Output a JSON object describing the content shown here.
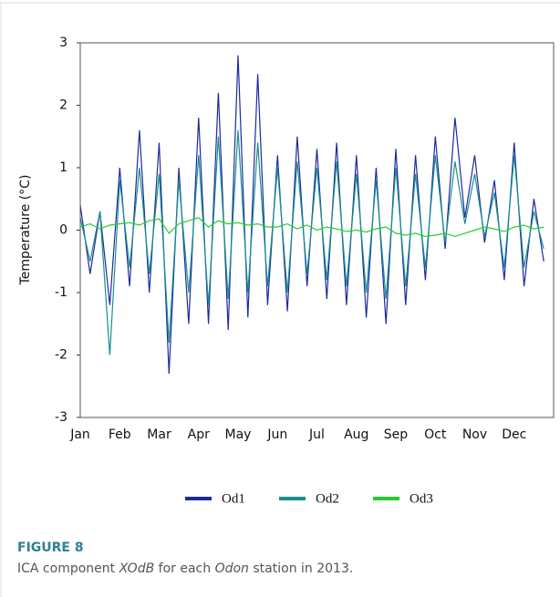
{
  "chart_data": {
    "type": "line",
    "y_label": "Temperature (°C)",
    "categories": [
      "Jan",
      null,
      null,
      null,
      "Feb",
      null,
      null,
      null,
      "Mar",
      null,
      null,
      null,
      "Apr",
      null,
      null,
      null,
      "May",
      null,
      null,
      null,
      "Jun",
      null,
      null,
      null,
      "Jul",
      null,
      null,
      null,
      "Aug",
      null,
      null,
      null,
      "Sep",
      null,
      null,
      null,
      "Oct",
      null,
      null,
      null,
      "Nov",
      null,
      null,
      null,
      "Dec",
      null,
      null,
      null
    ],
    "series": [
      {
        "name": "Od1",
        "color": "#1e2a9e",
        "values": [
          0.4,
          -0.7,
          0.3,
          -1.2,
          1.0,
          -0.9,
          1.6,
          -1.0,
          1.4,
          -2.3,
          1.0,
          -1.5,
          1.8,
          -1.5,
          2.2,
          -1.6,
          2.8,
          -1.4,
          2.5,
          -1.2,
          1.2,
          -1.3,
          1.5,
          -0.9,
          1.3,
          -1.1,
          1.4,
          -1.2,
          1.2,
          -1.4,
          1.0,
          -1.5,
          1.3,
          -1.2,
          1.2,
          -0.8,
          1.5,
          -0.3,
          1.8,
          0.2,
          1.2,
          -0.2,
          0.8,
          -0.8,
          1.4,
          -0.9,
          0.5,
          -0.5
        ]
      },
      {
        "name": "Od2",
        "color": "#17908f",
        "values": [
          0.2,
          -0.5,
          0.3,
          -2.0,
          0.8,
          -0.6,
          1.0,
          -0.7,
          0.9,
          -1.8,
          0.8,
          -1.0,
          1.2,
          -1.2,
          1.5,
          -1.1,
          1.6,
          -1.0,
          1.4,
          -0.9,
          1.0,
          -1.0,
          1.1,
          -0.7,
          1.0,
          -0.8,
          1.1,
          -0.9,
          0.9,
          -1.0,
          0.8,
          -1.1,
          1.0,
          -0.9,
          0.9,
          -0.6,
          1.2,
          -0.2,
          1.1,
          0.1,
          0.9,
          -0.1,
          0.6,
          -0.6,
          1.2,
          -0.6,
          0.3,
          -0.3
        ]
      },
      {
        "name": "Od3",
        "color": "#22d02a",
        "values": [
          0.05,
          0.1,
          0.02,
          0.08,
          0.1,
          0.12,
          0.08,
          0.15,
          0.18,
          -0.05,
          0.1,
          0.15,
          0.2,
          0.05,
          0.15,
          0.1,
          0.12,
          0.08,
          0.1,
          0.05,
          0.05,
          0.1,
          0.02,
          0.08,
          0.0,
          0.05,
          0.02,
          -0.02,
          0.0,
          -0.03,
          0.02,
          0.05,
          -0.05,
          -0.08,
          -0.05,
          -0.1,
          -0.08,
          -0.05,
          -0.1,
          -0.05,
          0.0,
          0.05,
          0.02,
          -0.02,
          0.05,
          0.08,
          0.02,
          0.05
        ]
      }
    ],
    "ylim": [
      -3,
      3
    ],
    "yticks": [
      -3,
      -2,
      -1,
      0,
      1,
      2,
      3
    ]
  },
  "caption": {
    "label": "FIGURE 8",
    "parts": [
      "ICA component ",
      "XOdB",
      " for each ",
      "Odon",
      " station in 2013."
    ]
  }
}
